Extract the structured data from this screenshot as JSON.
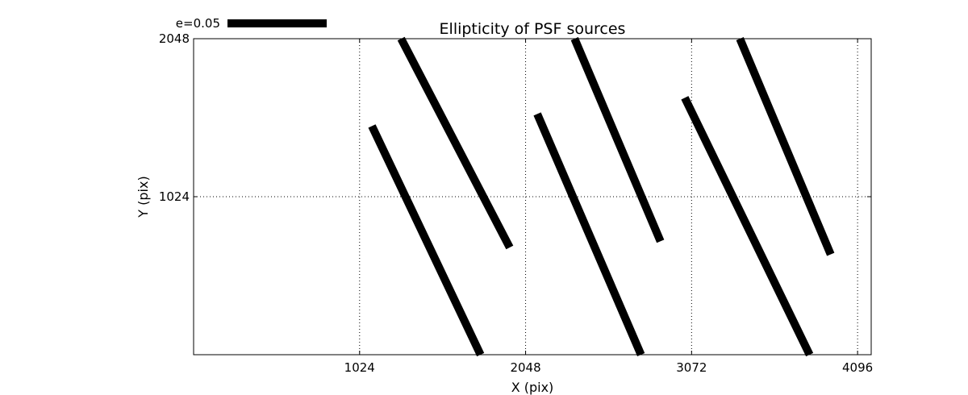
{
  "chart_data": {
    "type": "quiver",
    "title": "Ellipticity of PSF sources",
    "xlabel": "X (pix)",
    "ylabel": "Y (pix)",
    "xlim": [
      0,
      4180
    ],
    "ylim": [
      0,
      2048
    ],
    "xticks": [
      1024,
      2048,
      3072,
      4096
    ],
    "yticks": [
      1024,
      2048
    ],
    "grid": true,
    "grid_style": "dotted",
    "line_color": "#000000",
    "legend": {
      "label": "e=0.05",
      "placement": "top-left, above axes"
    },
    "segments": [
      {
        "x1": 1100,
        "y1": 1482,
        "x2": 1770,
        "y2": 0
      },
      {
        "x1": 1280,
        "y1": 2048,
        "x2": 1950,
        "y2": 695
      },
      {
        "x1": 2120,
        "y1": 1560,
        "x2": 2760,
        "y2": 0
      },
      {
        "x1": 2350,
        "y1": 2048,
        "x2": 2880,
        "y2": 735
      },
      {
        "x1": 3030,
        "y1": 1665,
        "x2": 3800,
        "y2": 0
      },
      {
        "x1": 3370,
        "y1": 2048,
        "x2": 3930,
        "y2": 650
      }
    ]
  }
}
